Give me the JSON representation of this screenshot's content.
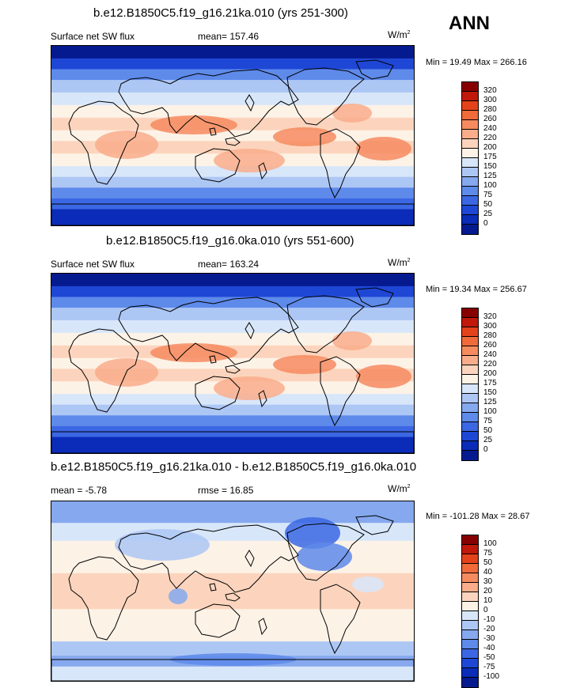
{
  "season": "ANN",
  "panels": [
    {
      "title": "b.e12.B1850C5.f19_g16.21ka.010 (yrs 251-300)",
      "left_label": "Surface net SW flux",
      "center_label": "mean= 157.46",
      "units": "W/m",
      "units_exp": "2",
      "minmax": "Min =  19.49 Max = 266.16",
      "kind": "abs",
      "legend_labels": [
        "320",
        "300",
        "280",
        "260",
        "240",
        "220",
        "200",
        "175",
        "150",
        "125",
        "100",
        "75",
        "50",
        "25",
        "0"
      ],
      "legend_colors": [
        "#870000",
        "#c0180b",
        "#e4421a",
        "#f16a3a",
        "#f68b60",
        "#f9ad8b",
        "#fcd4bd",
        "#fdf2e6",
        "#d8e6fa",
        "#adc7f5",
        "#85a8ee",
        "#5e8aea",
        "#3b67e4",
        "#1e47d6",
        "#0a2cb8",
        "#061a8f"
      ]
    },
    {
      "title": "b.e12.B1850C5.f19_g16.0ka.010 (yrs 551-600)",
      "left_label": "Surface net SW flux",
      "center_label": "mean= 163.24",
      "units": "W/m",
      "units_exp": "2",
      "minmax": "Min =  19.34 Max = 256.67",
      "kind": "abs",
      "legend_labels": [
        "320",
        "300",
        "280",
        "260",
        "240",
        "220",
        "200",
        "175",
        "150",
        "125",
        "100",
        "75",
        "50",
        "25",
        "0"
      ],
      "legend_colors": [
        "#870000",
        "#c0180b",
        "#e4421a",
        "#f16a3a",
        "#f68b60",
        "#f9ad8b",
        "#fcd4bd",
        "#fdf2e6",
        "#d8e6fa",
        "#adc7f5",
        "#85a8ee",
        "#5e8aea",
        "#3b67e4",
        "#1e47d6",
        "#0a2cb8",
        "#061a8f"
      ]
    },
    {
      "title": "b.e12.B1850C5.f19_g16.21ka.010 - b.e12.B1850C5.f19_g16.0ka.010",
      "left_label": "mean =  -5.78",
      "center_label": "rmse =  16.85",
      "units": "W/m",
      "units_exp": "2",
      "minmax": "Min = -101.28 Max =  28.67",
      "kind": "diff",
      "legend_labels": [
        "100",
        "75",
        "50",
        "40",
        "30",
        "20",
        "10",
        "0",
        "-10",
        "-20",
        "-30",
        "-40",
        "-50",
        "-75",
        "-100"
      ],
      "legend_colors": [
        "#870000",
        "#c0180b",
        "#e4421a",
        "#f16a3a",
        "#f68b60",
        "#f9ad8b",
        "#fcd4bd",
        "#fdf2e6",
        "#d8e6fa",
        "#adc7f5",
        "#85a8ee",
        "#5e8aea",
        "#3b67e4",
        "#1e47d6",
        "#0a2cb8",
        "#061a8f"
      ]
    }
  ]
}
